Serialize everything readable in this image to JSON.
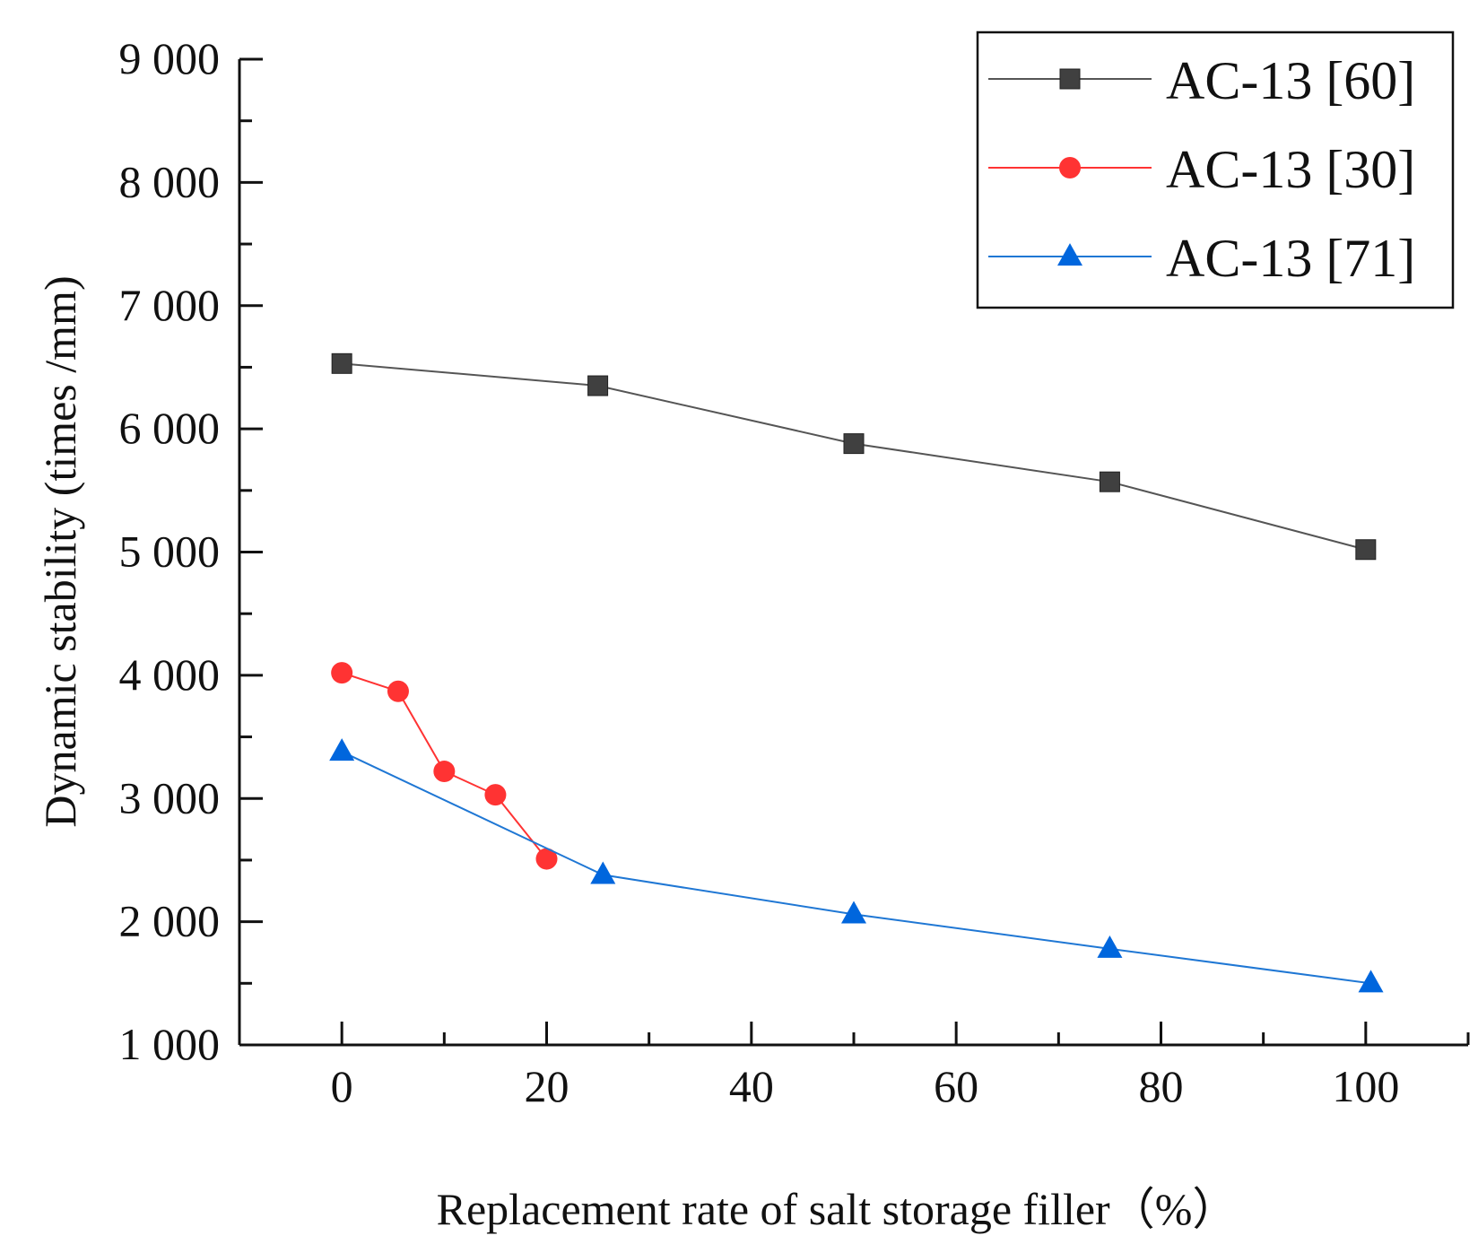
{
  "chart_data": {
    "type": "line",
    "xlabel": "Replacement rate of salt storage filler（%）",
    "ylabel": "Dynamic stability (times /mm)",
    "xlim": [
      -10,
      110
    ],
    "ylim": [
      1000,
      9000
    ],
    "x_ticks": [
      0,
      20,
      40,
      60,
      80,
      100
    ],
    "x_tick_labels": [
      "0",
      "20",
      "40",
      "60",
      "80",
      "100"
    ],
    "y_ticks": [
      1000,
      2000,
      3000,
      4000,
      5000,
      6000,
      7000,
      8000,
      9000
    ],
    "y_tick_labels": [
      "1 000",
      "2 000",
      "3 000",
      "4 000",
      "5 000",
      "6 000",
      "7 000",
      "8 000",
      "9 000"
    ],
    "legend_position": "top-right",
    "series": [
      {
        "name": "AC-13 [60]",
        "color": "#404040",
        "line_color": "#555555",
        "marker": "square",
        "x": [
          0,
          25,
          50,
          75,
          100
        ],
        "y": [
          6530,
          6350,
          5880,
          5570,
          5020
        ]
      },
      {
        "name": "AC-13 [30]",
        "color": "#ff3333",
        "line_color": "#ff3333",
        "marker": "circle",
        "x": [
          0,
          5.5,
          10,
          15,
          20
        ],
        "y": [
          4020,
          3870,
          3220,
          3030,
          2510
        ]
      },
      {
        "name": "AC-13 [71]",
        "color": "#0066dd",
        "line_color": "#1f77d4",
        "marker": "triangle",
        "x": [
          0,
          25.5,
          50,
          75,
          100.5
        ],
        "y": [
          3380,
          2380,
          2060,
          1780,
          1500
        ]
      }
    ]
  }
}
